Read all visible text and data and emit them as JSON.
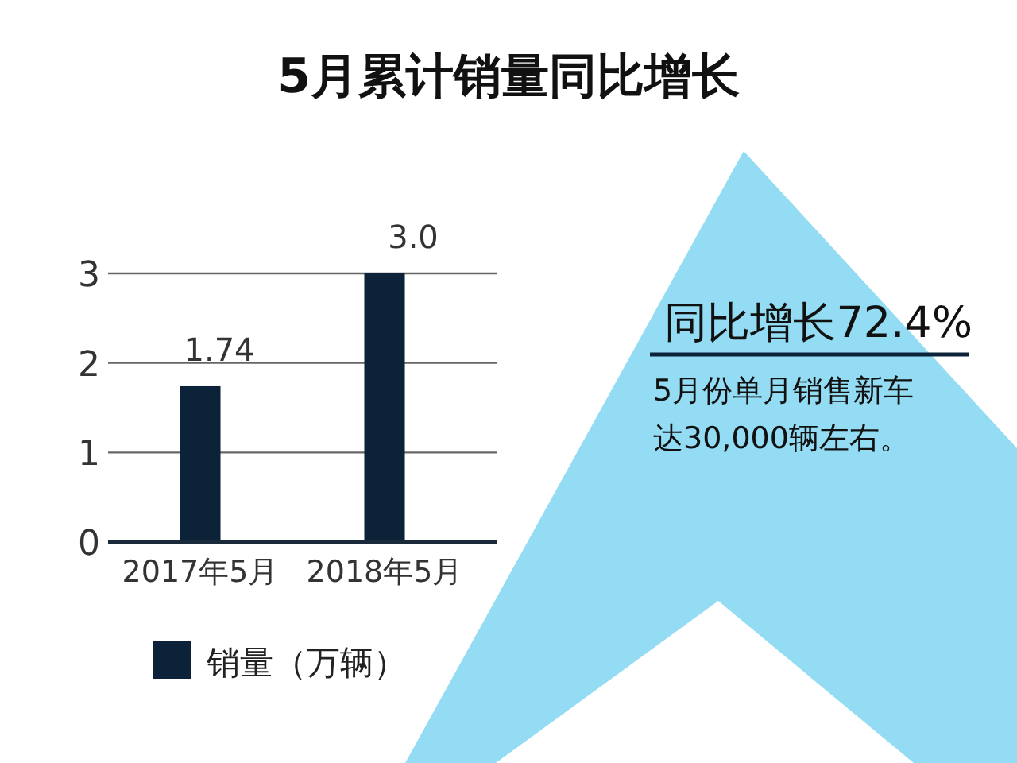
{
  "chart_data": {
    "type": "bar",
    "title": "5月累计销量同比增长",
    "categories": [
      "2017年5月",
      "2018年5月"
    ],
    "series": [
      {
        "name": "销量（万辆）",
        "color": "#0c2238",
        "values": [
          1.74,
          3.0
        ],
        "value_labels": [
          "1.74",
          "3.0"
        ]
      }
    ],
    "ylim": [
      0,
      3
    ],
    "yticks": [
      0,
      1,
      2,
      3
    ],
    "grid": "y",
    "legend": "bottom",
    "annotations": [
      "同比增长72.4%",
      "5月份单月销售新车",
      "达30,000辆左右。"
    ]
  }
}
